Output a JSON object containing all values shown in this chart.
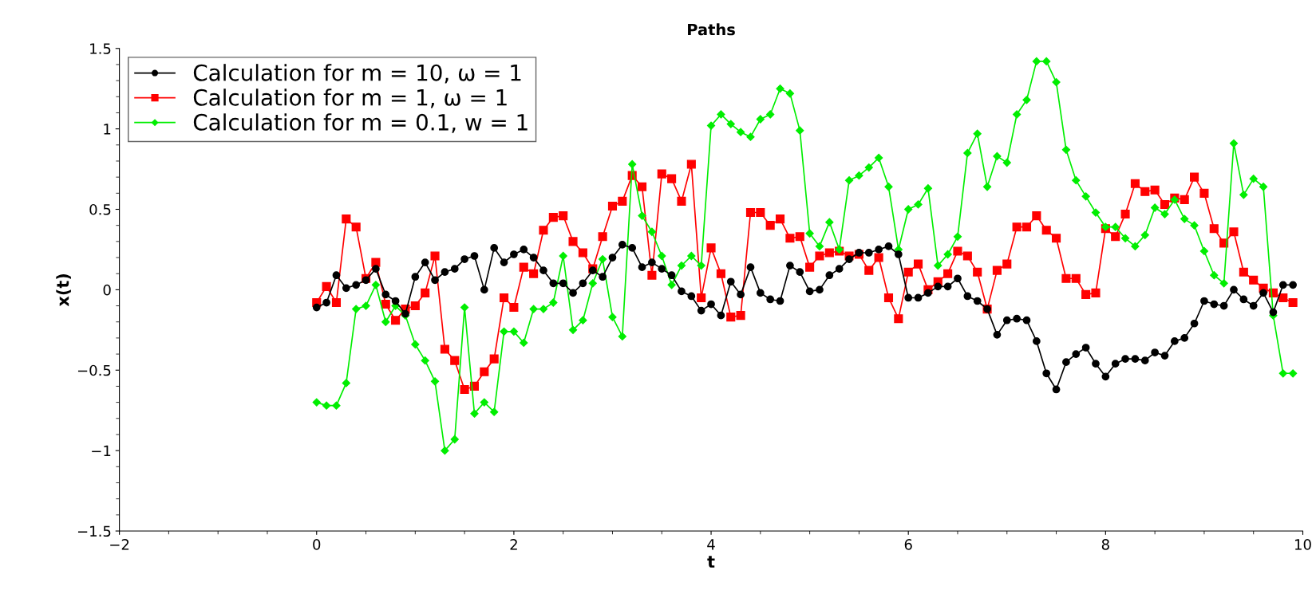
{
  "chart_data": {
    "type": "line",
    "title": "Paths",
    "xlabel": "t",
    "ylabel": "x(t)",
    "x": [
      0,
      0.1,
      0.2,
      0.3,
      0.4,
      0.5,
      0.6,
      0.7,
      0.8,
      0.9,
      1,
      1.1,
      1.2,
      1.3,
      1.4,
      1.5,
      1.6,
      1.7,
      1.8,
      1.9,
      2,
      2.1,
      2.2,
      2.3,
      2.4,
      2.5,
      2.6,
      2.7,
      2.8,
      2.9,
      3,
      3.1,
      3.2,
      3.3,
      3.4,
      3.5,
      3.6,
      3.7,
      3.8,
      3.9,
      4,
      4.1,
      4.2,
      4.3,
      4.4,
      4.5,
      4.6,
      4.7,
      4.8,
      4.9,
      5,
      5.1,
      5.2,
      5.3,
      5.4,
      5.5,
      5.6,
      5.7,
      5.8,
      5.9,
      6,
      6.1,
      6.2,
      6.3,
      6.4,
      6.5,
      6.6,
      6.7,
      6.8,
      6.9,
      7,
      7.1,
      7.2,
      7.3,
      7.4,
      7.5,
      7.6,
      7.7,
      7.8,
      7.9,
      8,
      8.1,
      8.2,
      8.3,
      8.4,
      8.5,
      8.6,
      8.7,
      8.8,
      8.9,
      9,
      9.1,
      9.2,
      9.3,
      9.4,
      9.5,
      9.6,
      9.7,
      9.8,
      9.9
    ],
    "series": [
      {
        "name": "Calculation for m = 10, ω = 1",
        "color": "#000000",
        "marker": "circle",
        "values": [
          -0.11,
          -0.08,
          0.09,
          0.01,
          0.03,
          0.06,
          0.13,
          -0.03,
          -0.07,
          -0.15,
          0.08,
          0.17,
          0.06,
          0.11,
          0.13,
          0.19,
          0.21,
          0.0,
          0.26,
          0.17,
          0.22,
          0.25,
          0.2,
          0.12,
          0.04,
          0.04,
          -0.02,
          0.04,
          0.12,
          0.08,
          0.2,
          0.28,
          0.26,
          0.14,
          0.17,
          0.13,
          0.09,
          -0.01,
          -0.04,
          -0.13,
          -0.09,
          -0.16,
          0.05,
          -0.03,
          0.14,
          -0.02,
          -0.06,
          -0.07,
          0.15,
          0.11,
          -0.01,
          0.0,
          0.09,
          0.13,
          0.19,
          0.23,
          0.23,
          0.25,
          0.27,
          0.22,
          -0.05,
          -0.05,
          -0.02,
          0.02,
          0.02,
          0.07,
          -0.04,
          -0.07,
          -0.12,
          -0.28,
          -0.19,
          -0.18,
          -0.19,
          -0.32,
          -0.52,
          -0.62,
          -0.45,
          -0.4,
          -0.36,
          -0.46,
          -0.54,
          -0.46,
          -0.43,
          -0.43,
          -0.44,
          -0.39,
          -0.41,
          -0.32,
          -0.3,
          -0.21,
          -0.07,
          -0.09,
          -0.1,
          0.0,
          -0.06,
          -0.1,
          -0.02,
          -0.14,
          0.03,
          0.03
        ]
      },
      {
        "name": "Calculation for m = 1, ω = 1",
        "color": "#ff0000",
        "marker": "square",
        "values": [
          -0.08,
          0.02,
          -0.08,
          0.44,
          0.39,
          0.07,
          0.17,
          -0.09,
          -0.19,
          -0.12,
          -0.1,
          -0.02,
          0.21,
          -0.37,
          -0.44,
          -0.62,
          -0.6,
          -0.51,
          -0.43,
          -0.05,
          -0.11,
          0.14,
          0.1,
          0.37,
          0.45,
          0.46,
          0.3,
          0.23,
          0.13,
          0.33,
          0.52,
          0.55,
          0.71,
          0.64,
          0.09,
          0.72,
          0.69,
          0.55,
          0.78,
          -0.05,
          0.26,
          0.1,
          -0.17,
          -0.16,
          0.48,
          0.48,
          0.4,
          0.44,
          0.32,
          0.33,
          0.14,
          0.21,
          0.23,
          0.24,
          0.21,
          0.22,
          0.12,
          0.2,
          -0.05,
          -0.18,
          0.11,
          0.16,
          0.0,
          0.05,
          0.1,
          0.24,
          0.21,
          0.11,
          -0.12,
          0.12,
          0.16,
          0.39,
          0.39,
          0.46,
          0.37,
          0.32,
          0.07,
          0.07,
          -0.03,
          -0.02,
          0.38,
          0.33,
          0.47,
          0.66,
          0.61,
          0.62,
          0.53,
          0.57,
          0.56,
          0.7,
          0.6,
          0.38,
          0.29,
          0.36,
          0.11,
          0.06,
          0.01,
          -0.02,
          -0.05,
          -0.08
        ]
      },
      {
        "name": "Calculation for m = 0.1, w = 1",
        "color": "#00ee00",
        "marker": "diamond",
        "values": [
          -0.7,
          -0.72,
          -0.72,
          -0.58,
          -0.12,
          -0.1,
          0.03,
          -0.2,
          -0.1,
          -0.16,
          -0.34,
          -0.44,
          -0.57,
          -1.0,
          -0.93,
          -0.11,
          -0.77,
          -0.7,
          -0.76,
          -0.26,
          -0.26,
          -0.33,
          -0.12,
          -0.12,
          -0.08,
          0.21,
          -0.25,
          -0.19,
          0.04,
          0.19,
          -0.17,
          -0.29,
          0.78,
          0.46,
          0.36,
          0.21,
          0.03,
          0.15,
          0.21,
          0.15,
          1.02,
          1.09,
          1.03,
          0.98,
          0.95,
          1.06,
          1.09,
          1.25,
          1.22,
          0.99,
          0.35,
          0.27,
          0.42,
          0.25,
          0.68,
          0.71,
          0.76,
          0.82,
          0.64,
          0.25,
          0.5,
          0.53,
          0.63,
          0.15,
          0.22,
          0.33,
          0.85,
          0.97,
          0.64,
          0.83,
          0.79,
          1.09,
          1.18,
          1.42,
          1.42,
          1.29,
          0.87,
          0.68,
          0.58,
          0.48,
          0.39,
          0.39,
          0.32,
          0.27,
          0.34,
          0.51,
          0.47,
          0.56,
          0.44,
          0.4,
          0.24,
          0.09,
          0.04,
          0.91,
          0.59,
          0.69,
          0.64,
          -0.16,
          -0.52,
          -0.52
        ]
      }
    ],
    "xlim": [
      -2,
      10
    ],
    "xticks": [
      {
        "value": -2,
        "label": "−2"
      },
      0,
      2,
      4,
      6,
      8,
      10
    ],
    "ylim": [
      -1.5,
      1.5
    ],
    "yticks": [
      {
        "value": -1.5,
        "label": "−1.5"
      },
      {
        "value": -1,
        "label": "−1"
      },
      {
        "value": -0.5,
        "label": "−0.5"
      },
      0,
      0.5,
      1,
      1.5
    ],
    "legend": "top left",
    "grid": false,
    "line_style": "solid"
  }
}
